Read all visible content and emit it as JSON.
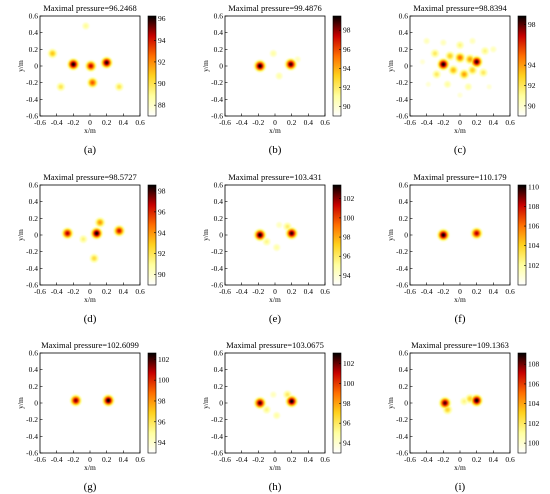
{
  "figure": {
    "xlabel": "x/m",
    "ylabel": "y/m",
    "x_ticks": [
      "-0.6",
      "-0.4",
      "-0.2",
      "0",
      "0.2",
      "0.4",
      "0.6"
    ],
    "y_ticks": [
      "0.6",
      "0.4",
      "0.2",
      "0",
      "-0.2",
      "-0.4",
      "-0.6"
    ]
  },
  "chart_data": [
    {
      "type": "heatmap",
      "panel": "(a)",
      "title": "Maximal pressure=96.2468",
      "xlabel": "x/m",
      "ylabel": "y/m",
      "xlim": [
        -0.6,
        0.6
      ],
      "ylim": [
        -0.6,
        0.6
      ],
      "colorbar": {
        "min": 87,
        "max": 96.2468,
        "ticks": [
          96,
          94,
          92,
          90,
          88
        ]
      },
      "colormap": [
        "#ffffff",
        "#ffffa0",
        "#ffd21e",
        "#ff6e00",
        "#c80000",
        "#000000"
      ],
      "sources": [
        {
          "x": -0.2,
          "y": 0.02,
          "amplitude": 96.2468
        },
        {
          "x": 0.2,
          "y": 0.04,
          "amplitude": 96.0
        },
        {
          "x": 0.01,
          "y": 0.0,
          "amplitude": 94.5
        },
        {
          "x": 0.03,
          "y": -0.2,
          "amplitude": 93.0
        },
        {
          "x": -0.45,
          "y": 0.15,
          "amplitude": 91.0
        },
        {
          "x": -0.35,
          "y": -0.25,
          "amplitude": 90.0
        },
        {
          "x": 0.35,
          "y": -0.25,
          "amplitude": 90.0
        },
        {
          "x": -0.05,
          "y": 0.48,
          "amplitude": 89.0
        }
      ]
    },
    {
      "type": "heatmap",
      "panel": "(b)",
      "title": "Maximal pressure=99.4876",
      "xlabel": "x/m",
      "ylabel": "y/m",
      "xlim": [
        -0.6,
        0.6
      ],
      "ylim": [
        -0.6,
        0.6
      ],
      "colorbar": {
        "min": 89,
        "max": 99.4876,
        "ticks": [
          98,
          96,
          94,
          92,
          90
        ]
      },
      "colormap": [
        "#ffffff",
        "#ffffa0",
        "#ffd21e",
        "#ff6e00",
        "#c80000",
        "#000000"
      ],
      "sources": [
        {
          "x": -0.18,
          "y": 0.0,
          "amplitude": 99.4876
        },
        {
          "x": 0.19,
          "y": 0.02,
          "amplitude": 99.0
        },
        {
          "x": -0.02,
          "y": 0.15,
          "amplitude": 91.0
        },
        {
          "x": 0.05,
          "y": -0.12,
          "amplitude": 91.0
        },
        {
          "x": 0.27,
          "y": 0.08,
          "amplitude": 90.5
        }
      ]
    },
    {
      "type": "heatmap",
      "panel": "(c)",
      "title": "Maximal pressure=98.8394",
      "xlabel": "x/m",
      "ylabel": "y/m",
      "xlim": [
        -0.6,
        0.6
      ],
      "ylim": [
        -0.6,
        0.6
      ],
      "colorbar": {
        "min": 89,
        "max": 98.8394,
        "ticks": [
          98,
          94,
          92,
          90
        ]
      },
      "colormap": [
        "#ffffff",
        "#ffffa0",
        "#ffd21e",
        "#ff6e00",
        "#c80000",
        "#000000"
      ],
      "sources": [
        {
          "x": -0.2,
          "y": 0.02,
          "amplitude": 98.8394
        },
        {
          "x": 0.2,
          "y": 0.05,
          "amplitude": 98.5
        },
        {
          "x": 0.0,
          "y": 0.1,
          "amplitude": 95.0
        },
        {
          "x": 0.05,
          "y": -0.1,
          "amplitude": 94.0
        },
        {
          "x": -0.08,
          "y": -0.05,
          "amplitude": 93.5
        },
        {
          "x": 0.12,
          "y": 0.08,
          "amplitude": 94.0
        },
        {
          "x": 0.15,
          "y": -0.05,
          "amplitude": 93.0
        },
        {
          "x": -0.12,
          "y": 0.12,
          "amplitude": 93.0
        },
        {
          "x": -0.3,
          "y": 0.15,
          "amplitude": 92.0
        },
        {
          "x": -0.28,
          "y": -0.1,
          "amplitude": 92.0
        },
        {
          "x": 0.28,
          "y": -0.08,
          "amplitude": 92.0
        },
        {
          "x": 0.3,
          "y": 0.18,
          "amplitude": 91.5
        },
        {
          "x": 0.0,
          "y": 0.25,
          "amplitude": 91.5
        },
        {
          "x": -0.15,
          "y": -0.22,
          "amplitude": 91.0
        },
        {
          "x": 0.1,
          "y": -0.25,
          "amplitude": 91.0
        },
        {
          "x": -0.4,
          "y": 0.3,
          "amplitude": 90.5
        },
        {
          "x": 0.4,
          "y": 0.2,
          "amplitude": 90.5
        },
        {
          "x": 0.15,
          "y": 0.3,
          "amplitude": 90.5
        },
        {
          "x": -0.2,
          "y": 0.28,
          "amplitude": 90.5
        },
        {
          "x": 0.35,
          "y": -0.25,
          "amplitude": 90.0
        },
        {
          "x": -0.38,
          "y": -0.22,
          "amplitude": 90.0
        },
        {
          "x": 0.0,
          "y": -0.35,
          "amplitude": 90.0
        },
        {
          "x": -0.45,
          "y": 0.05,
          "amplitude": 90.0
        }
      ]
    },
    {
      "type": "heatmap",
      "panel": "(d)",
      "title": "Maximal pressure=98.5727",
      "xlabel": "x/m",
      "ylabel": "y/m",
      "xlim": [
        -0.6,
        0.6
      ],
      "ylim": [
        -0.6,
        0.6
      ],
      "colorbar": {
        "min": 89,
        "max": 98.5727,
        "ticks": [
          98,
          96,
          94,
          92,
          90
        ]
      },
      "colormap": [
        "#ffffff",
        "#ffffa0",
        "#ffd21e",
        "#ff6e00",
        "#c80000",
        "#000000"
      ],
      "sources": [
        {
          "x": 0.08,
          "y": 0.02,
          "amplitude": 98.5727
        },
        {
          "x": -0.27,
          "y": 0.02,
          "amplitude": 97.0
        },
        {
          "x": 0.35,
          "y": 0.05,
          "amplitude": 96.5
        },
        {
          "x": 0.12,
          "y": 0.15,
          "amplitude": 94.0
        },
        {
          "x": 0.05,
          "y": -0.28,
          "amplitude": 92.5
        },
        {
          "x": -0.08,
          "y": -0.05,
          "amplitude": 91.5
        }
      ]
    },
    {
      "type": "heatmap",
      "panel": "(e)",
      "title": "Maximal pressure=103.431",
      "xlabel": "x/m",
      "ylabel": "y/m",
      "xlim": [
        -0.6,
        0.6
      ],
      "ylim": [
        -0.6,
        0.6
      ],
      "colorbar": {
        "min": 93,
        "max": 103.431,
        "ticks": [
          102,
          100,
          98,
          96,
          94
        ]
      },
      "colormap": [
        "#ffffff",
        "#ffffa0",
        "#ffd21e",
        "#ff6e00",
        "#c80000",
        "#000000"
      ],
      "sources": [
        {
          "x": -0.18,
          "y": 0.0,
          "amplitude": 103.431
        },
        {
          "x": 0.2,
          "y": 0.02,
          "amplitude": 103.0
        },
        {
          "x": 0.15,
          "y": 0.1,
          "amplitude": 96.0
        },
        {
          "x": -0.1,
          "y": -0.08,
          "amplitude": 95.5
        },
        {
          "x": 0.02,
          "y": -0.15,
          "amplitude": 95.0
        },
        {
          "x": 0.05,
          "y": 0.12,
          "amplitude": 94.5
        }
      ]
    },
    {
      "type": "heatmap",
      "panel": "(f)",
      "title": "Maximal pressure=110.179",
      "xlabel": "x/m",
      "ylabel": "y/m",
      "xlim": [
        -0.6,
        0.6
      ],
      "ylim": [
        -0.6,
        0.6
      ],
      "colorbar": {
        "min": 100,
        "max": 110.179,
        "ticks": [
          110,
          108,
          106,
          104,
          102
        ]
      },
      "colormap": [
        "#ffffff",
        "#ffffa0",
        "#ffd21e",
        "#ff6e00",
        "#c80000",
        "#000000"
      ],
      "sources": [
        {
          "x": -0.2,
          "y": 0.0,
          "amplitude": 110.179
        },
        {
          "x": 0.2,
          "y": 0.02,
          "amplitude": 108.5
        }
      ]
    },
    {
      "type": "heatmap",
      "panel": "(g)",
      "title": "Maximal pressure=102.6099",
      "xlabel": "x/m",
      "ylabel": "y/m",
      "xlim": [
        -0.6,
        0.6
      ],
      "ylim": [
        -0.6,
        0.6
      ],
      "colorbar": {
        "min": 93,
        "max": 102.6099,
        "ticks": [
          102,
          100,
          98,
          96,
          94
        ]
      },
      "colormap": [
        "#ffffff",
        "#ffffa0",
        "#ffd21e",
        "#ff6e00",
        "#c80000",
        "#000000"
      ],
      "sources": [
        {
          "x": -0.17,
          "y": 0.03,
          "amplitude": 101.5
        },
        {
          "x": 0.22,
          "y": 0.03,
          "amplitude": 102.6099
        }
      ]
    },
    {
      "type": "heatmap",
      "panel": "(h)",
      "title": "Maximal pressure=103.0675",
      "xlabel": "x/m",
      "ylabel": "y/m",
      "xlim": [
        -0.6,
        0.6
      ],
      "ylim": [
        -0.6,
        0.6
      ],
      "colorbar": {
        "min": 93,
        "max": 103.0675,
        "ticks": [
          102,
          100,
          98,
          96,
          94
        ]
      },
      "colormap": [
        "#ffffff",
        "#ffffa0",
        "#ffd21e",
        "#ff6e00",
        "#c80000",
        "#000000"
      ],
      "sources": [
        {
          "x": -0.18,
          "y": 0.0,
          "amplitude": 102.5
        },
        {
          "x": 0.2,
          "y": 0.02,
          "amplitude": 103.0675
        },
        {
          "x": 0.15,
          "y": 0.1,
          "amplitude": 96.0
        },
        {
          "x": -0.1,
          "y": -0.08,
          "amplitude": 95.5
        },
        {
          "x": 0.02,
          "y": -0.15,
          "amplitude": 95.0
        },
        {
          "x": -0.02,
          "y": 0.1,
          "amplitude": 94.5
        }
      ]
    },
    {
      "type": "heatmap",
      "panel": "(i)",
      "title": "Maximal pressure=109.1363",
      "xlabel": "x/m",
      "ylabel": "y/m",
      "xlim": [
        -0.6,
        0.6
      ],
      "ylim": [
        -0.6,
        0.6
      ],
      "colorbar": {
        "min": 99,
        "max": 109.1363,
        "ticks": [
          108,
          106,
          104,
          102,
          100
        ]
      },
      "colormap": [
        "#ffffff",
        "#ffffa0",
        "#ffd21e",
        "#ff6e00",
        "#c80000",
        "#000000"
      ],
      "sources": [
        {
          "x": -0.18,
          "y": 0.0,
          "amplitude": 108.5
        },
        {
          "x": 0.2,
          "y": 0.03,
          "amplitude": 109.1363
        },
        {
          "x": 0.12,
          "y": 0.05,
          "amplitude": 103.0
        },
        {
          "x": -0.15,
          "y": -0.08,
          "amplitude": 103.0
        },
        {
          "x": 0.05,
          "y": 0.02,
          "amplitude": 101.5
        }
      ]
    }
  ]
}
